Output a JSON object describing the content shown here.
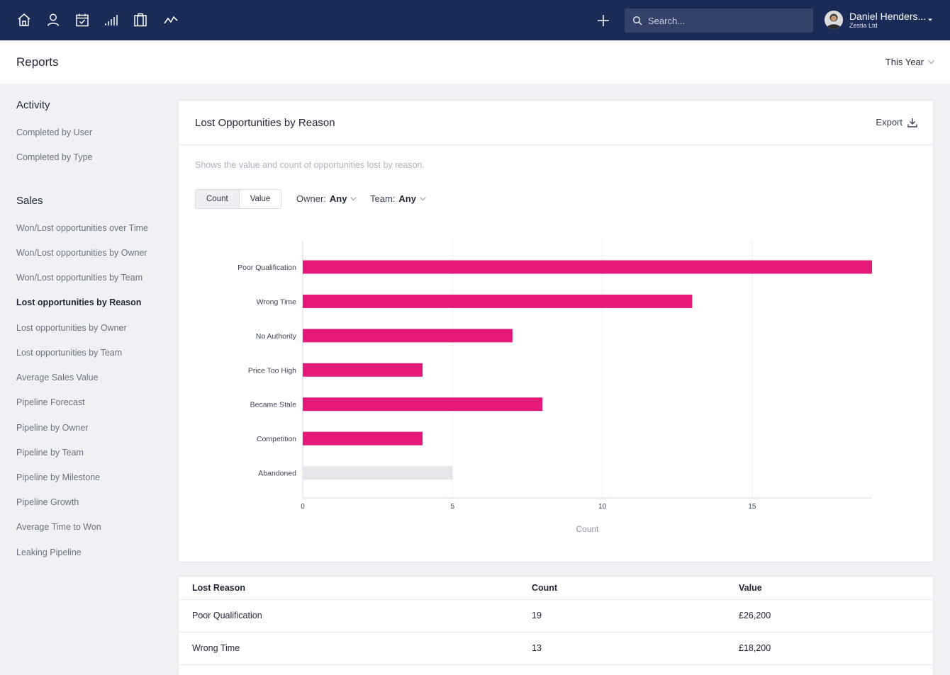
{
  "nav": {
    "icons": [
      "home-icon",
      "user-icon",
      "calendar-check-icon",
      "bar-signal-icon",
      "clipboard-icon",
      "activity-icon"
    ],
    "search_placeholder": "Search...",
    "user_name": "Daniel Henders...",
    "user_company": "Zestia Ltd"
  },
  "header": {
    "title": "Reports",
    "period": "This Year"
  },
  "sidebar": {
    "activity_heading": "Activity",
    "activity_items": [
      "Completed by User",
      "Completed by Type"
    ],
    "sales_heading": "Sales",
    "sales_items": [
      "Won/Lost opportunities over Time",
      "Won/Lost opportunities by Owner",
      "Won/Lost opportunities by Team",
      "Lost opportunities by Reason",
      "Lost opportunities by Owner",
      "Lost opportunities by Team",
      "Average Sales Value",
      "Pipeline Forecast",
      "Pipeline by Owner",
      "Pipeline by Team",
      "Pipeline by Milestone",
      "Pipeline Growth",
      "Average Time to Won",
      "Leaking Pipeline"
    ],
    "active_item": "Lost opportunities by Reason"
  },
  "card": {
    "title": "Lost Opportunities by Reason",
    "export_label": "Export",
    "description": "Shows the value and count of opportunities lost by reason.",
    "toggle_count": "Count",
    "toggle_value": "Value",
    "owner_label": "Owner:",
    "owner_value": "Any",
    "team_label": "Team:",
    "team_value": "Any"
  },
  "chart_data": {
    "type": "bar",
    "orientation": "horizontal",
    "categories": [
      "Poor Qualification",
      "Wrong Time",
      "No Authority",
      "Price Too High",
      "Became Stale",
      "Competition",
      "Abandoned"
    ],
    "values": [
      19,
      13,
      7,
      4,
      8,
      4,
      5
    ],
    "colors": [
      "#e5197a",
      "#e5197a",
      "#e5197a",
      "#e5197a",
      "#e5197a",
      "#e5197a",
      "#e4e6ea"
    ],
    "xticks": [
      0,
      5,
      10,
      15
    ],
    "xlim": [
      0,
      19
    ],
    "xlabel": "Count",
    "grid": true
  },
  "table": {
    "headers": [
      "Lost Reason",
      "Count",
      "Value"
    ],
    "rows": [
      [
        "Poor Qualification",
        "19",
        "£26,200"
      ],
      [
        "Wrong Time",
        "13",
        "£18,200"
      ]
    ]
  },
  "colors": {
    "nav_bg": "#1b2b58",
    "bar": "#e5197a",
    "bar_muted": "#e4e6ea"
  }
}
